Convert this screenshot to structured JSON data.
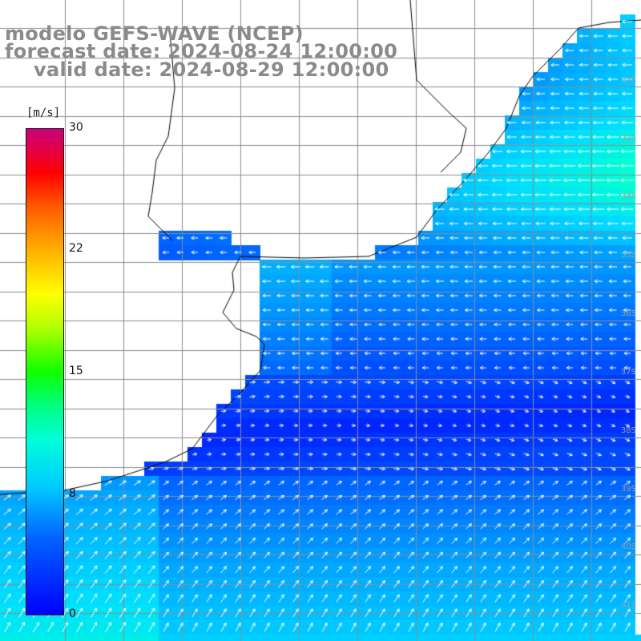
{
  "header": {
    "model": "modelo GEFS-WAVE (NCEP)",
    "forecast": "forecast date: 2024-08-24 12:00:00",
    "valid": "valid date: 2024-08-29 12:00:00"
  },
  "colorbar": {
    "unit": "[m/s]",
    "ticks": [
      "30",
      "22",
      "15",
      "8",
      "0"
    ],
    "colors": [
      "#0000ff",
      "#00c8ff",
      "#00ffd8",
      "#10ff00",
      "#ffff00",
      "#ff0000",
      "#c8007e"
    ]
  },
  "map": {
    "lat_labels": [
      "32S",
      "33S",
      "34S",
      "35S",
      "36S",
      "37S",
      "38S",
      "39S",
      "40S",
      "41S"
    ],
    "land_color": "#ffffff",
    "grid_color": "#8c8c8c",
    "arrow_color": "#ffffff"
  }
}
